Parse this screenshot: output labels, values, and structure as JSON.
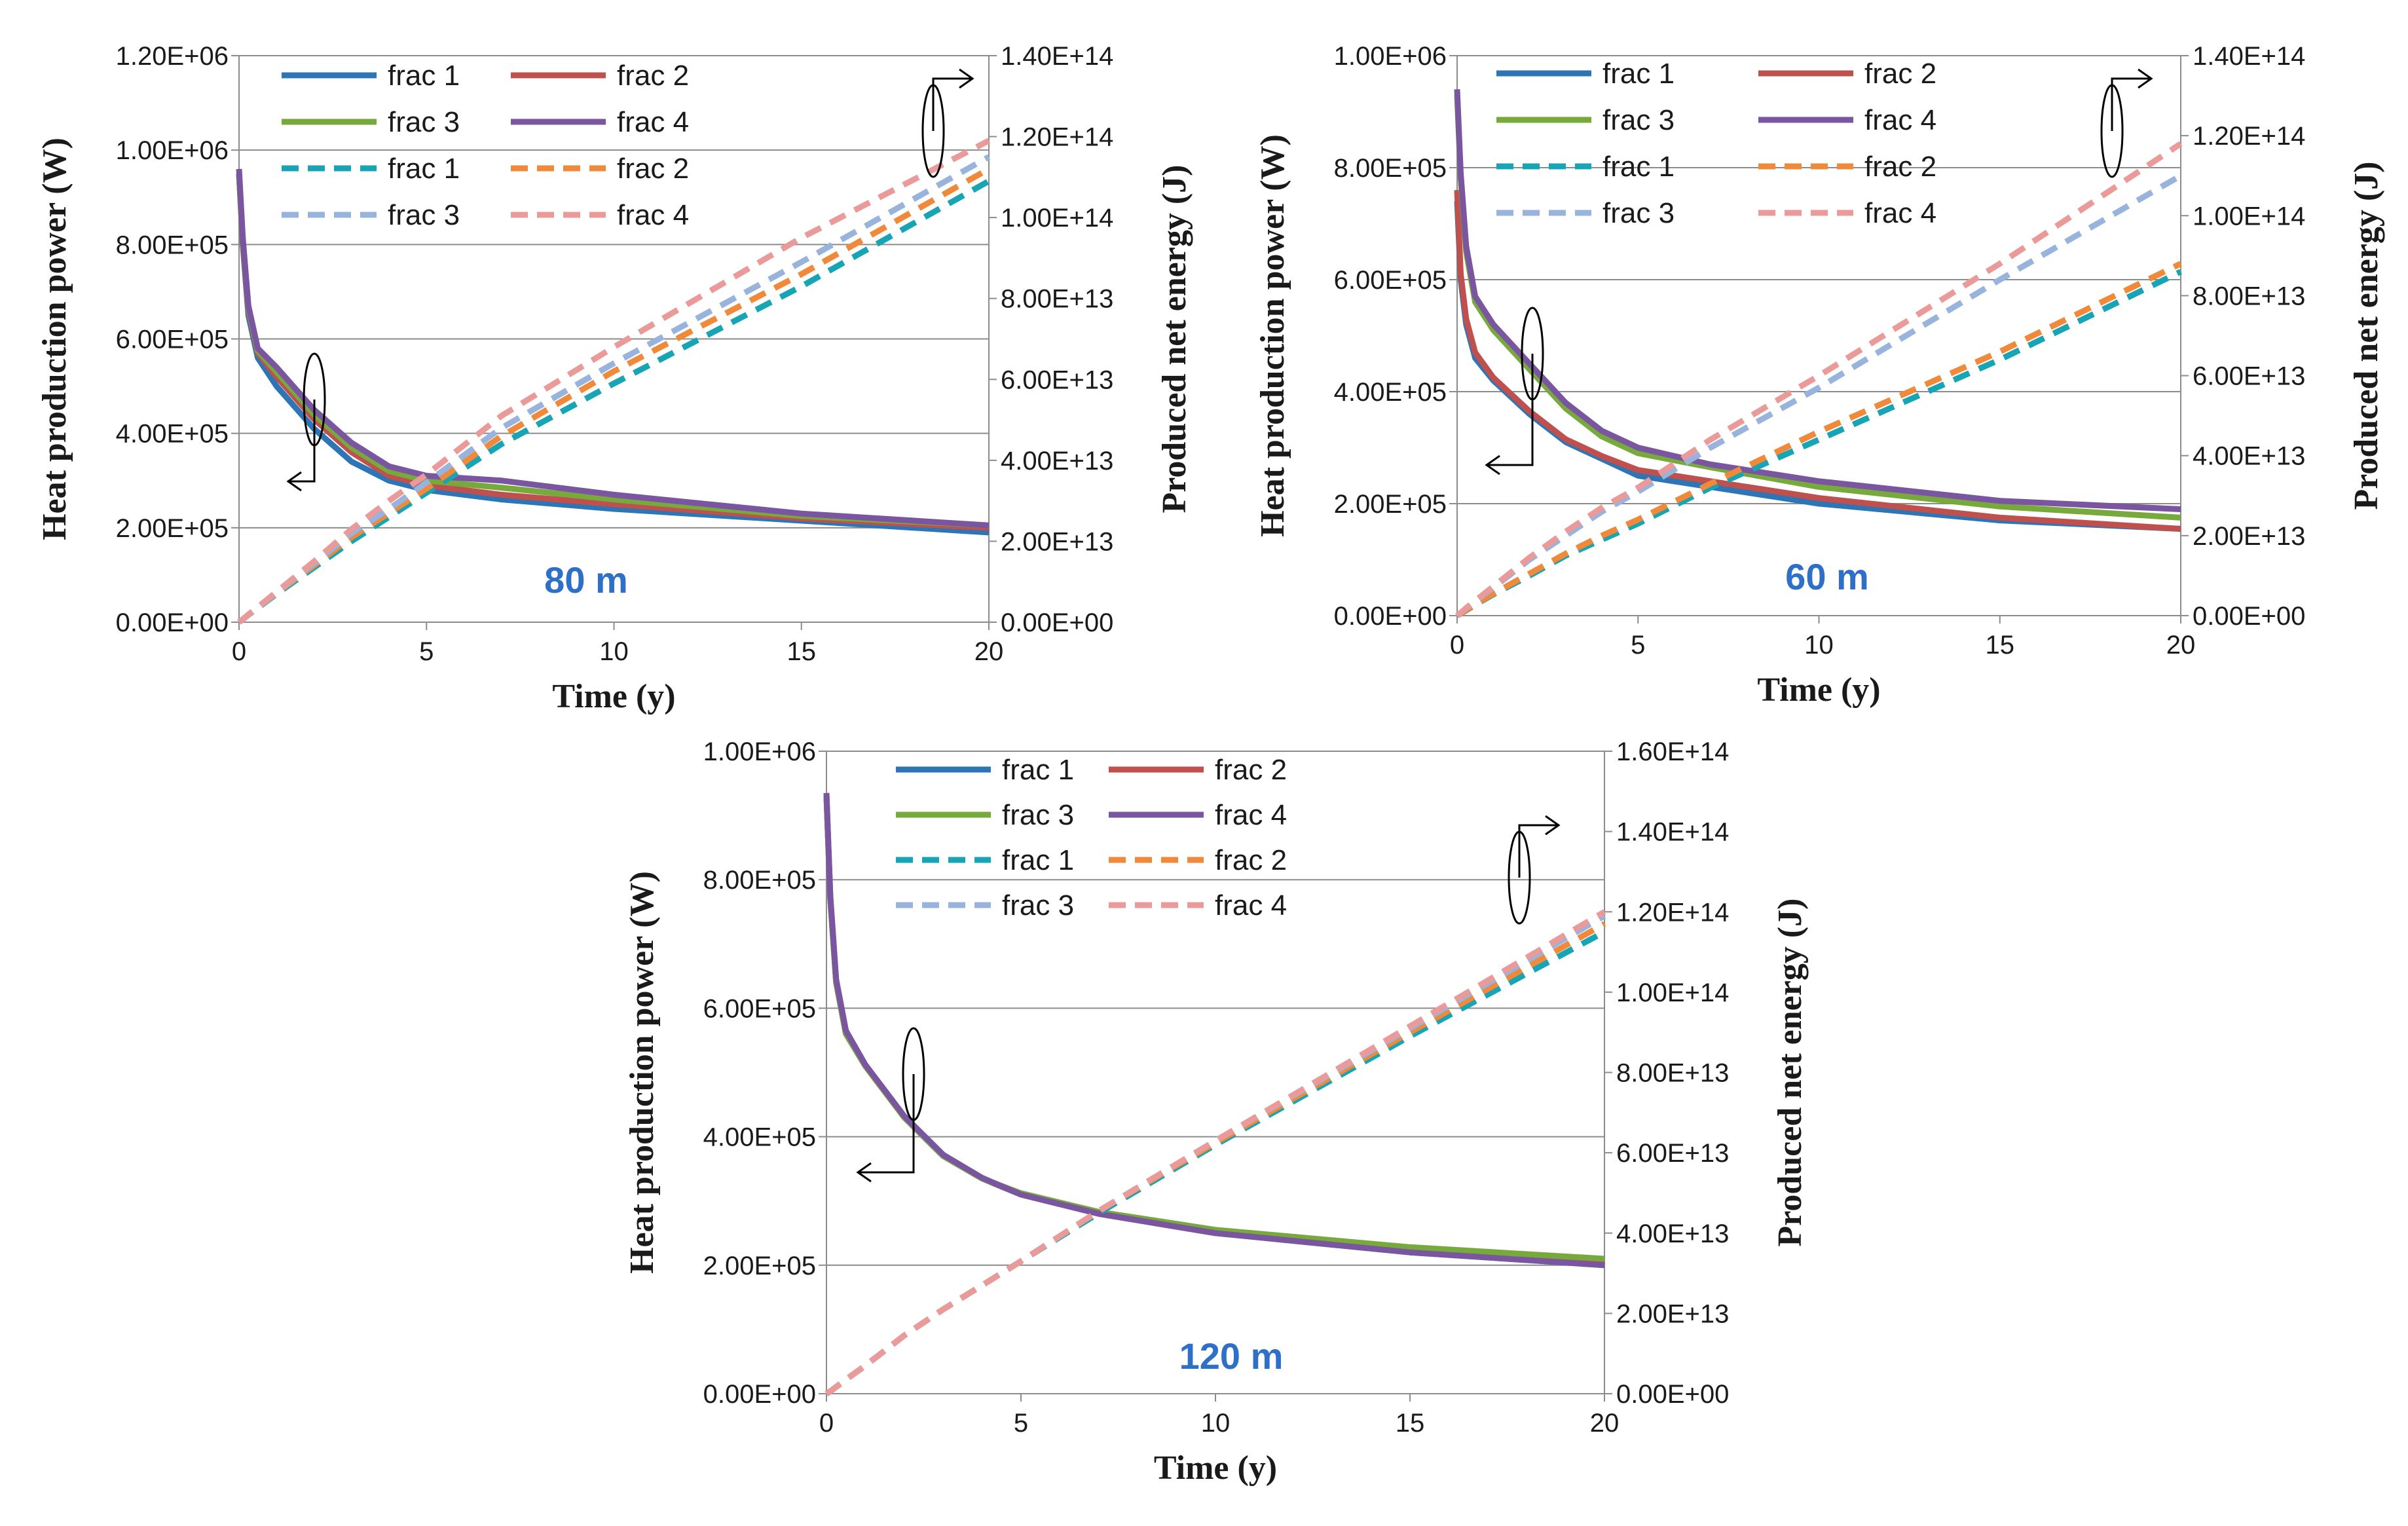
{
  "chart_data": [
    {
      "type": "line",
      "annotation": "80 m",
      "xlabel": "Time (y)",
      "ylabel_left": "Heat production power (W)",
      "ylabel_right": "Produced net energy (J)",
      "xlim": [
        0,
        20
      ],
      "xticks": [
        "0",
        "5",
        "10",
        "15",
        "20"
      ],
      "ylim_left": [
        0,
        1200000
      ],
      "yticks_left": [
        "0.00E+00",
        "2.00E+05",
        "4.00E+05",
        "6.00E+05",
        "8.00E+05",
        "1.00E+06",
        "1.20E+06"
      ],
      "ylim_right": [
        0,
        140000000000000
      ],
      "yticks_right": [
        "0.00E+00",
        "2.00E+13",
        "4.00E+13",
        "6.00E+13",
        "8.00E+13",
        "1.00E+14",
        "1.20E+14",
        "1.40E+14"
      ],
      "x": [
        0,
        0.1,
        0.25,
        0.5,
        1,
        2,
        3,
        4,
        5,
        7,
        10,
        15,
        20
      ],
      "series": [
        {
          "name": "frac 1",
          "axis": "left",
          "style": "solid",
          "color": "#2e75b6",
          "values": [
            950000,
            800000,
            650000,
            560000,
            500000,
            410000,
            340000,
            300000,
            280000,
            260000,
            240000,
            215000,
            190000
          ]
        },
        {
          "name": "frac 2",
          "axis": "left",
          "style": "solid",
          "color": "#c0504d",
          "values": [
            950000,
            805000,
            660000,
            570000,
            520000,
            430000,
            360000,
            310000,
            290000,
            270000,
            250000,
            220000,
            200000
          ]
        },
        {
          "name": "frac 3",
          "axis": "left",
          "style": "solid",
          "color": "#77a93c",
          "values": [
            950000,
            810000,
            665000,
            575000,
            530000,
            440000,
            370000,
            320000,
            300000,
            285000,
            260000,
            225000,
            205000
          ]
        },
        {
          "name": "frac 4",
          "axis": "left",
          "style": "solid",
          "color": "#7a56a1",
          "values": [
            960000,
            815000,
            670000,
            580000,
            540000,
            450000,
            380000,
            330000,
            310000,
            300000,
            270000,
            230000,
            205000
          ]
        },
        {
          "name": "frac 1",
          "axis": "right",
          "style": "dashed",
          "color": "#17a4b5",
          "values": [
            0,
            700000000000,
            1800000000000,
            3500000000000,
            7000000000000,
            13500000000000,
            20000000000000,
            26000000000000,
            32000000000000,
            44000000000000,
            59000000000000,
            83000000000000,
            109000000000000
          ]
        },
        {
          "name": "frac 2",
          "axis": "right",
          "style": "dashed",
          "color": "#f08a3a",
          "values": [
            0,
            700000000000,
            1800000000000,
            3600000000000,
            7200000000000,
            14000000000000,
            21000000000000,
            27000000000000,
            33000000000000,
            46000000000000,
            62000000000000,
            86000000000000,
            112000000000000
          ]
        },
        {
          "name": "frac 3",
          "axis": "right",
          "style": "dashed",
          "color": "#98b3dc",
          "values": [
            0,
            700000000000,
            1800000000000,
            3600000000000,
            7300000000000,
            14500000000000,
            22000000000000,
            28000000000000,
            34500000000000,
            48000000000000,
            64000000000000,
            89000000000000,
            115000000000000
          ]
        },
        {
          "name": "frac 4",
          "axis": "right",
          "style": "dashed",
          "color": "#eb9a9a",
          "values": [
            0,
            700000000000,
            1900000000000,
            3700000000000,
            7500000000000,
            15000000000000,
            23000000000000,
            30000000000000,
            36500000000000,
            51000000000000,
            68000000000000,
            95000000000000,
            119000000000000
          ]
        }
      ]
    },
    {
      "type": "line",
      "annotation": "60 m",
      "xlabel": "Time (y)",
      "ylabel_left": "Heat production power (W)",
      "ylabel_right": "Produced net energy (J)",
      "xlim": [
        0,
        20
      ],
      "xticks": [
        "0",
        "5",
        "10",
        "15",
        "20"
      ],
      "ylim_left": [
        0,
        1000000
      ],
      "yticks_left": [
        "0.00E+00",
        "2.00E+05",
        "4.00E+05",
        "6.00E+05",
        "8.00E+05",
        "1.00E+06"
      ],
      "ylim_right": [
        0,
        140000000000000
      ],
      "yticks_right": [
        "0.00E+00",
        "2.00E+13",
        "4.00E+13",
        "6.00E+13",
        "8.00E+13",
        "1.00E+14",
        "1.20E+14",
        "1.40E+14"
      ],
      "x": [
        0,
        0.1,
        0.25,
        0.5,
        1,
        2,
        3,
        4,
        5,
        7,
        10,
        15,
        20
      ],
      "series": [
        {
          "name": "frac 1",
          "axis": "left",
          "style": "solid",
          "color": "#2e75b6",
          "values": [
            740000,
            600000,
            520000,
            460000,
            420000,
            360000,
            310000,
            280000,
            250000,
            230000,
            200000,
            170000,
            155000
          ]
        },
        {
          "name": "frac 2",
          "axis": "left",
          "style": "solid",
          "color": "#c0504d",
          "values": [
            760000,
            610000,
            530000,
            470000,
            425000,
            365000,
            315000,
            285000,
            260000,
            240000,
            210000,
            175000,
            155000
          ]
        },
        {
          "name": "frac 3",
          "axis": "left",
          "style": "solid",
          "color": "#77a93c",
          "values": [
            930000,
            780000,
            650000,
            560000,
            510000,
            440000,
            370000,
            320000,
            290000,
            265000,
            230000,
            195000,
            175000
          ]
        },
        {
          "name": "frac 4",
          "axis": "left",
          "style": "solid",
          "color": "#7a56a1",
          "values": [
            940000,
            790000,
            660000,
            570000,
            520000,
            450000,
            380000,
            330000,
            300000,
            270000,
            240000,
            205000,
            190000
          ]
        },
        {
          "name": "frac 1",
          "axis": "right",
          "style": "dashed",
          "color": "#17a4b5",
          "values": [
            0,
            500000000000,
            1300000000000,
            2700000000000,
            5300000000000,
            10000000000000,
            15000000000000,
            19000000000000,
            23000000000000,
            32000000000000,
            44000000000000,
            64000000000000,
            86000000000000
          ]
        },
        {
          "name": "frac 2",
          "axis": "right",
          "style": "dashed",
          "color": "#f08a3a",
          "values": [
            0,
            500000000000,
            1400000000000,
            2800000000000,
            5500000000000,
            10500000000000,
            15500000000000,
            20000000000000,
            24000000000000,
            33000000000000,
            46000000000000,
            66000000000000,
            88000000000000
          ]
        },
        {
          "name": "frac 3",
          "axis": "right",
          "style": "dashed",
          "color": "#98b3dc",
          "values": [
            0,
            700000000000,
            1800000000000,
            3600000000000,
            7000000000000,
            14000000000000,
            20000000000000,
            26000000000000,
            31000000000000,
            42000000000000,
            57000000000000,
            84000000000000,
            110000000000000
          ]
        },
        {
          "name": "frac 4",
          "axis": "right",
          "style": "dashed",
          "color": "#eb9a9a",
          "values": [
            0,
            700000000000,
            1900000000000,
            3700000000000,
            7300000000000,
            14500000000000,
            21000000000000,
            27000000000000,
            32000000000000,
            44000000000000,
            60000000000000,
            88000000000000,
            118000000000000
          ]
        }
      ]
    },
    {
      "type": "line",
      "annotation": "120 m",
      "xlabel": "Time (y)",
      "ylabel_left": "Heat production power (W)",
      "ylabel_right": "Produced net energy (J)",
      "xlim": [
        0,
        20
      ],
      "xticks": [
        "0",
        "5",
        "10",
        "15",
        "20"
      ],
      "ylim_left": [
        0,
        1000000
      ],
      "yticks_left": [
        "0.00E+00",
        "2.00E+05",
        "4.00E+05",
        "6.00E+05",
        "8.00E+05",
        "1.00E+06"
      ],
      "ylim_right": [
        0,
        160000000000000
      ],
      "yticks_right": [
        "0.00E+00",
        "2.00E+13",
        "4.00E+13",
        "6.00E+13",
        "8.00E+13",
        "1.00E+14",
        "1.20E+14",
        "1.40E+14",
        "1.60E+14"
      ],
      "x": [
        0,
        0.1,
        0.25,
        0.5,
        1,
        2,
        3,
        4,
        5,
        7,
        10,
        15,
        20
      ],
      "series": [
        {
          "name": "frac 1",
          "axis": "left",
          "style": "solid",
          "color": "#2e75b6",
          "values": [
            930000,
            770000,
            640000,
            560000,
            510000,
            430000,
            370000,
            335000,
            310000,
            280000,
            250000,
            220000,
            200000
          ]
        },
        {
          "name": "frac 2",
          "axis": "left",
          "style": "solid",
          "color": "#c0504d",
          "values": [
            930000,
            770000,
            640000,
            560000,
            510000,
            430000,
            370000,
            335000,
            310000,
            280000,
            250000,
            222000,
            202000
          ]
        },
        {
          "name": "frac 3",
          "axis": "left",
          "style": "solid",
          "color": "#77a93c",
          "values": [
            930000,
            770000,
            640000,
            560000,
            510000,
            430000,
            370000,
            335000,
            312000,
            283000,
            255000,
            228000,
            210000
          ]
        },
        {
          "name": "frac 4",
          "axis": "left",
          "style": "solid",
          "color": "#7a56a1",
          "values": [
            935000,
            775000,
            645000,
            565000,
            512000,
            432000,
            372000,
            336000,
            310000,
            280000,
            250000,
            220000,
            200000
          ]
        },
        {
          "name": "frac 1",
          "axis": "right",
          "style": "dashed",
          "color": "#17a4b5",
          "values": [
            0,
            600000000000,
            1700000000000,
            3500000000000,
            7000000000000,
            14500000000000,
            21000000000000,
            27000000000000,
            33000000000000,
            45000000000000,
            62000000000000,
            89000000000000,
            115000000000000
          ]
        },
        {
          "name": "frac 2",
          "axis": "right",
          "style": "dashed",
          "color": "#f08a3a",
          "values": [
            0,
            600000000000,
            1700000000000,
            3500000000000,
            7000000000000,
            14500000000000,
            21000000000000,
            27000000000000,
            33000000000000,
            45500000000000,
            62500000000000,
            90000000000000,
            117000000000000
          ]
        },
        {
          "name": "frac 3",
          "axis": "right",
          "style": "dashed",
          "color": "#98b3dc",
          "values": [
            0,
            600000000000,
            1700000000000,
            3500000000000,
            7000000000000,
            14500000000000,
            21000000000000,
            27000000000000,
            33000000000000,
            45500000000000,
            63000000000000,
            91000000000000,
            119000000000000
          ]
        },
        {
          "name": "frac 4",
          "axis": "right",
          "style": "dashed",
          "color": "#eb9a9a",
          "values": [
            0,
            600000000000,
            1700000000000,
            3500000000000,
            7000000000000,
            14500000000000,
            21000000000000,
            27000000000000,
            33000000000000,
            45500000000000,
            63000000000000,
            91500000000000,
            120000000000000
          ]
        }
      ]
    }
  ]
}
